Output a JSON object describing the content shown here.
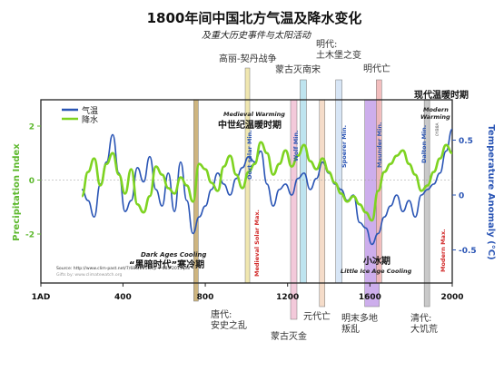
{
  "chart_data": {
    "type": "line",
    "title": "1800年间中国北方气温及降水变化",
    "subtitle": "及重大历史事件与太阳活动",
    "xlabel": "",
    "ylabel_left": "Precipitation Index",
    "ylabel_right": "Temperature Anomaly (°C)",
    "xlim": [
      1,
      2000
    ],
    "ylim_left": [
      -2.5,
      2.5
    ],
    "ylim_right": [
      -0.65,
      0.75
    ],
    "x_ticks": [
      {
        "value": 1,
        "label": "1AD"
      },
      {
        "value": 400,
        "label": "400"
      },
      {
        "value": 800,
        "label": "800"
      },
      {
        "value": 1200,
        "label": "1200"
      },
      {
        "value": 1600,
        "label": "1600"
      },
      {
        "value": 2000,
        "label": "2000"
      }
    ],
    "y_ticks_left": [
      {
        "value": 2,
        "label": "2"
      },
      {
        "value": 0,
        "label": "0"
      },
      {
        "value": -2,
        "label": "-2"
      }
    ],
    "y_ticks_right": [
      {
        "value": 0.5,
        "label": "0.5"
      },
      {
        "value": 0,
        "label": "0"
      },
      {
        "value": -0.5,
        "label": "-0.5"
      }
    ],
    "legend": {
      "placement": "top-left",
      "entries": [
        {
          "label": "气温",
          "color": "#2a55b5"
        },
        {
          "label": "降水",
          "color": "#7ed321"
        }
      ]
    },
    "series": [
      {
        "name": "气温",
        "axis": "right",
        "color": "#2a55b5",
        "x": [
          200,
          230,
          260,
          290,
          320,
          350,
          380,
          410,
          440,
          470,
          500,
          530,
          560,
          590,
          620,
          650,
          680,
          710,
          740,
          770,
          800,
          830,
          860,
          890,
          920,
          950,
          980,
          1010,
          1040,
          1070,
          1100,
          1130,
          1160,
          1190,
          1220,
          1250,
          1280,
          1310,
          1340,
          1370,
          1400,
          1430,
          1460,
          1490,
          1520,
          1550,
          1580,
          1610,
          1640,
          1670,
          1700,
          1730,
          1760,
          1790,
          1820,
          1850,
          1880,
          1910,
          1940,
          1970,
          2000
        ],
        "y": [
          0.05,
          -0.05,
          -0.2,
          0.1,
          0.3,
          0.55,
          0.2,
          -0.15,
          -0.05,
          0.25,
          0.12,
          0.35,
          0.05,
          -0.1,
          0.2,
          -0.15,
          0.3,
          -0.05,
          -0.35,
          -0.2,
          -0.1,
          0.05,
          0.2,
          0.1,
          0.0,
          0.15,
          0.25,
          0.35,
          0.3,
          0.4,
          0.1,
          -0.1,
          0.05,
          0.1,
          0.0,
          0.15,
          0.2,
          0.05,
          0.15,
          0.3,
          0.2,
          0.1,
          0.05,
          -0.05,
          0.0,
          -0.25,
          -0.3,
          -0.45,
          -0.35,
          -0.2,
          -0.1,
          0.0,
          -0.15,
          -0.05,
          -0.2,
          0.0,
          0.05,
          0.1,
          0.2,
          0.4,
          0.6
        ]
      },
      {
        "name": "降水",
        "axis": "left",
        "color": "#7ed321",
        "x": [
          200,
          230,
          260,
          290,
          320,
          350,
          380,
          410,
          440,
          470,
          500,
          530,
          560,
          590,
          620,
          650,
          680,
          710,
          740,
          770,
          800,
          830,
          860,
          890,
          920,
          950,
          980,
          1010,
          1040,
          1070,
          1100,
          1130,
          1160,
          1190,
          1220,
          1250,
          1280,
          1310,
          1340,
          1370,
          1400,
          1430,
          1460,
          1490,
          1520,
          1550,
          1580,
          1610,
          1640,
          1670,
          1700,
          1730,
          1760,
          1790,
          1820,
          1850,
          1880,
          1910,
          1940,
          1970,
          2000
        ],
        "y": [
          -0.6,
          0.3,
          0.8,
          -0.2,
          0.6,
          1.0,
          0.2,
          -0.5,
          0.4,
          -0.9,
          -1.2,
          -0.6,
          0.5,
          0.2,
          -0.3,
          -0.5,
          0.1,
          -0.2,
          -0.8,
          0.6,
          0.4,
          -0.1,
          -0.4,
          0.5,
          0.9,
          0.2,
          -0.3,
          0.3,
          0.6,
          1.4,
          1.0,
          0.2,
          0.6,
          1.1,
          0.5,
          0.9,
          1.3,
          0.7,
          0.4,
          0.8,
          0.3,
          -0.1,
          -0.5,
          -0.8,
          -0.6,
          -0.9,
          -1.2,
          -1.5,
          -0.4,
          0.3,
          0.6,
          0.9,
          1.1,
          0.6,
          0.2,
          -0.4,
          -0.2,
          0.3,
          0.8,
          1.3,
          1.0
        ]
      }
    ],
    "bands": [
      {
        "label": "唐代:\n安史之乱",
        "x": 755,
        "color": "#c9ad72"
      },
      {
        "label": "高丽-契丹战争",
        "x": 1005,
        "color": "#efe5a8"
      },
      {
        "label": "蒙古灭金",
        "x": 1230,
        "color": "#f2c4d6"
      },
      {
        "label": "蒙古灭南宋",
        "x": 1276,
        "color": "#b8e2ee"
      },
      {
        "label": "元代亡",
        "x": 1368,
        "color": "#f5d9c4"
      },
      {
        "label": "明代:\n土木堡之变",
        "x": 1449,
        "color": "#d4e4f6"
      },
      {
        "label": "明末多地\n叛乱",
        "x": 1610,
        "color": "#c8a6ea"
      },
      {
        "label": "明代亡",
        "x": 1644,
        "color": "#f2b8b8"
      },
      {
        "label": "清代:\n大饥荒",
        "x": 1877,
        "color": "#c4c4c4"
      }
    ],
    "annotations": [
      {
        "text": "Medieval Warming",
        "lang": "en"
      },
      {
        "text": "中世纪温暖时期",
        "lang": "zh"
      },
      {
        "text": "Oort solar Min.",
        "lang": "en"
      },
      {
        "text": "Wolf Min.",
        "lang": "en"
      },
      {
        "text": "Spoerer Min.",
        "lang": "en"
      },
      {
        "text": "Maunder Min.",
        "lang": "en"
      },
      {
        "text": "Dalton Min.",
        "lang": "en"
      },
      {
        "text": "Modern",
        "lang": "en"
      },
      {
        "text": "Warming",
        "lang": "en"
      },
      {
        "text": "现代温暖时期",
        "lang": "zh"
      },
      {
        "text": "Medieval Solar Max.",
        "lang": "en"
      },
      {
        "text": "Modern Max.",
        "lang": "en"
      },
      {
        "text": "Dark Ages Cooling",
        "lang": "en"
      },
      {
        "text": "“黑暗时代”寒冷期",
        "lang": "zh"
      },
      {
        "text": "小冰期",
        "lang": "zh"
      },
      {
        "text": "Little Ice Age Cooling",
        "lang": "en"
      },
      {
        "text": "Source: http://www.clim-past.net/7/685/2011/cp-7-685-2011.pdf",
        "lang": "en"
      },
      {
        "text": "Gifts by: www.climatewatch.org",
        "lang": "en"
      },
      {
        "text": "0YB8A",
        "lang": "en"
      }
    ]
  }
}
